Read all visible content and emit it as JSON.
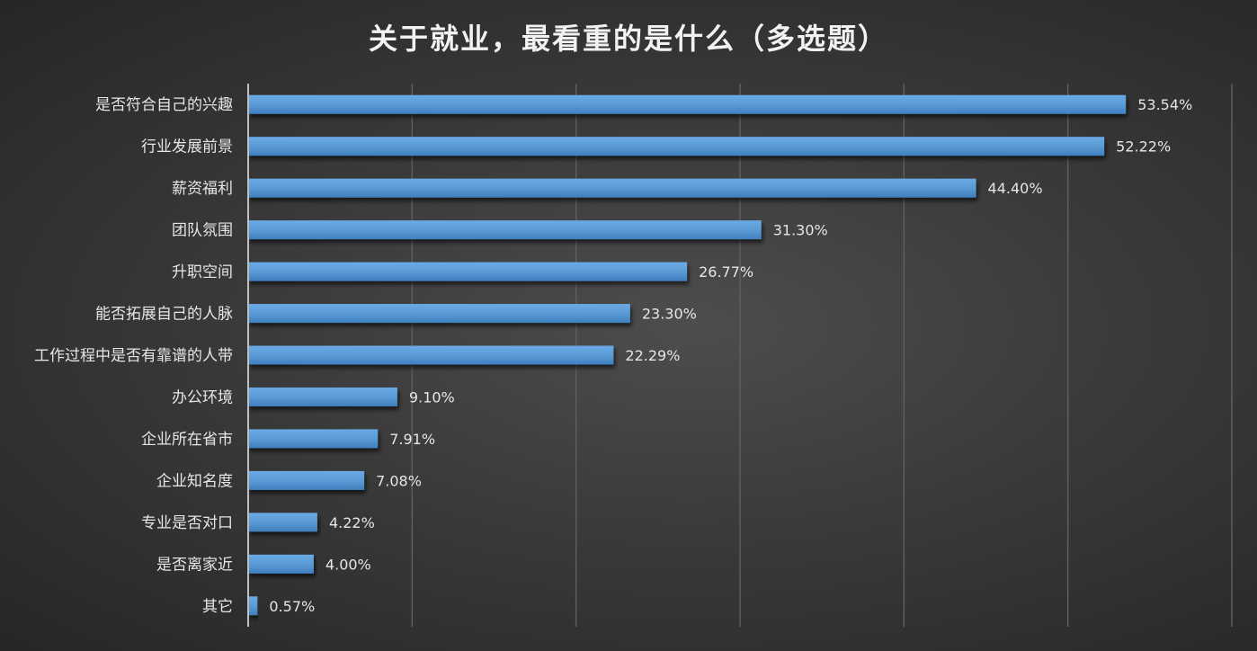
{
  "chart_data": {
    "type": "bar",
    "orientation": "horizontal",
    "title": "关于就业，最看重的是什么（多选题）",
    "categories": [
      "是否符合自己的兴趣",
      "行业发展前景",
      "薪资福利",
      "团队氛围",
      "升职空间",
      "能否拓展自己的人脉",
      "工作过程中是否有靠谱的人带",
      "办公环境",
      "企业所在省市",
      "企业知名度",
      "专业是否对口",
      "是否离家近",
      "其它"
    ],
    "values": [
      53.54,
      52.22,
      44.4,
      31.3,
      26.77,
      23.3,
      22.29,
      9.1,
      7.91,
      7.08,
      4.22,
      4.0,
      0.57
    ],
    "labels": [
      "53.54%",
      "52.22%",
      "44.40%",
      "31.30%",
      "26.77%",
      "23.30%",
      "22.29%",
      "9.10%",
      "7.91%",
      "7.08%",
      "4.22%",
      "4.00%",
      "0.57%"
    ],
    "xlim": [
      0,
      60
    ],
    "xgrid_step": 10,
    "grid": true,
    "legend": "none",
    "xlabel": "",
    "ylabel": "",
    "bar_color": "#5b9bd5"
  }
}
